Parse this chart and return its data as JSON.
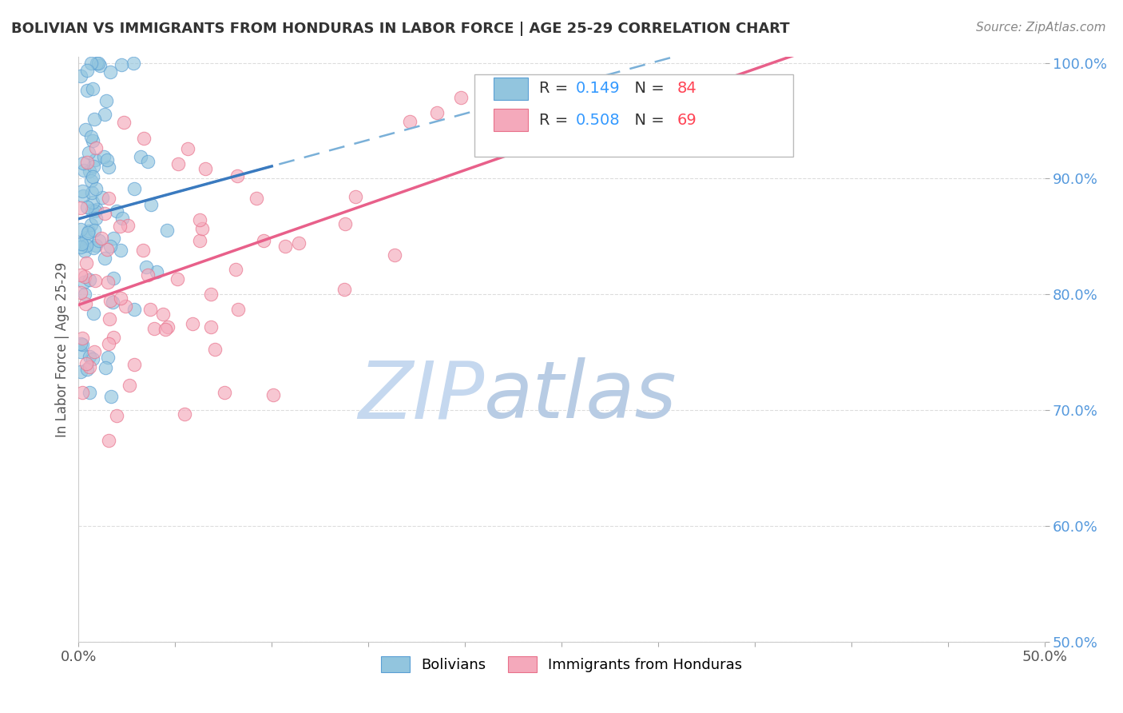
{
  "title": "BOLIVIAN VS IMMIGRANTS FROM HONDURAS IN LABOR FORCE | AGE 25-29 CORRELATION CHART",
  "source_text": "Source: ZipAtlas.com",
  "ylabel": "In Labor Force | Age 25-29",
  "xlim": [
    0.0,
    0.5
  ],
  "ylim": [
    0.5,
    1.005
  ],
  "xtick_vals": [
    0.0,
    0.05,
    0.1,
    0.15,
    0.2,
    0.25,
    0.3,
    0.35,
    0.4,
    0.45,
    0.5
  ],
  "xtick_labels": [
    "0.0%",
    "",
    "",
    "",
    "",
    "",
    "",
    "",
    "",
    "",
    "50.0%"
  ],
  "ytick_vals": [
    0.5,
    0.6,
    0.7,
    0.8,
    0.9,
    1.0
  ],
  "ytick_labels": [
    "50.0%",
    "60.0%",
    "70.0%",
    "80.0%",
    "90.0%",
    "100.0%"
  ],
  "blue_R": 0.149,
  "blue_N": 84,
  "pink_R": 0.508,
  "pink_N": 69,
  "blue_color": "#92c5de",
  "pink_color": "#f4a9bb",
  "blue_edge_color": "#5a9fd4",
  "pink_edge_color": "#e8708a",
  "blue_line_color": "#3a7abf",
  "blue_dash_color": "#7ab0d8",
  "pink_line_color": "#e8608a",
  "watermark_zip_color": "#c5d8ef",
  "watermark_atlas_color": "#b8cce4",
  "legend_label_blue": "Bolivians",
  "legend_label_pink": "Immigrants from Honduras",
  "right_tick_color": "#5599dd",
  "grid_color": "#dddddd",
  "title_color": "#333333",
  "source_color": "#888888",
  "ylabel_color": "#555555"
}
